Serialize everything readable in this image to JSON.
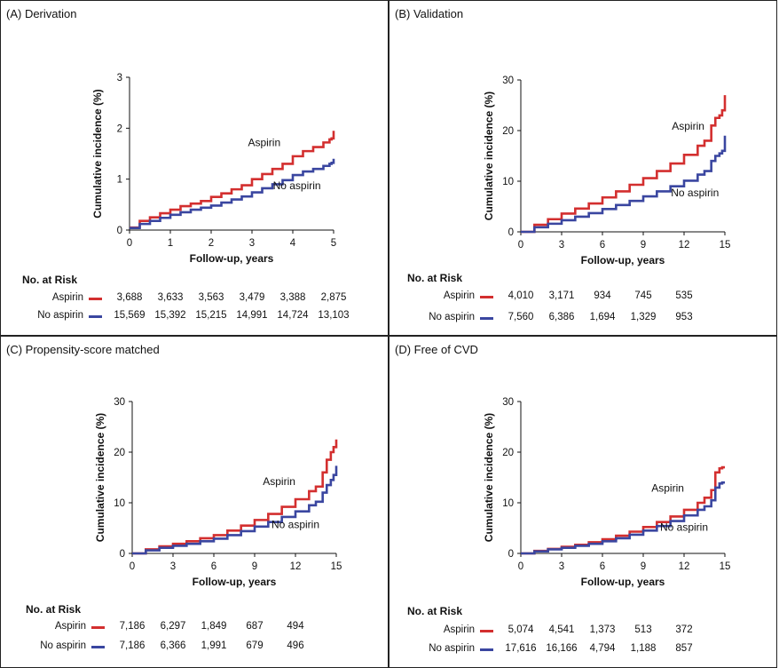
{
  "chart_data": [
    {
      "type": "line",
      "panel_title": "(A) Derivation",
      "xlabel": "Follow-up, years",
      "ylabel": "Cumulative incidence (%)",
      "xlim": [
        0,
        5
      ],
      "ylim": [
        0,
        3
      ],
      "xticks": [
        0,
        1,
        2,
        3,
        4,
        5
      ],
      "yticks": [
        0,
        1,
        2,
        3
      ],
      "series": [
        {
          "name": "Aspirin",
          "color": "#d32f2f",
          "x": [
            0,
            0.25,
            0.5,
            0.75,
            1,
            1.25,
            1.5,
            1.75,
            2,
            2.25,
            2.5,
            2.75,
            3,
            3.25,
            3.5,
            3.75,
            4,
            4.25,
            4.5,
            4.75,
            4.9,
            4.95,
            5
          ],
          "y": [
            0.05,
            0.18,
            0.25,
            0.33,
            0.4,
            0.47,
            0.52,
            0.57,
            0.65,
            0.72,
            0.8,
            0.88,
            1.0,
            1.1,
            1.2,
            1.3,
            1.45,
            1.55,
            1.63,
            1.72,
            1.78,
            1.8,
            1.95
          ]
        },
        {
          "name": "No aspirin",
          "color": "#3a46a0",
          "x": [
            0,
            0.25,
            0.5,
            0.75,
            1,
            1.25,
            1.5,
            1.75,
            2,
            2.25,
            2.5,
            2.75,
            3,
            3.25,
            3.5,
            3.75,
            4,
            4.25,
            4.5,
            4.75,
            4.9,
            4.95,
            5
          ],
          "y": [
            0.04,
            0.12,
            0.18,
            0.24,
            0.3,
            0.35,
            0.4,
            0.44,
            0.48,
            0.54,
            0.6,
            0.66,
            0.74,
            0.82,
            0.9,
            0.98,
            1.08,
            1.15,
            1.2,
            1.26,
            1.3,
            1.32,
            1.4
          ]
        }
      ],
      "curve_labels": [
        {
          "text": "Aspirin",
          "x": 3.3,
          "y": 1.65
        },
        {
          "text": "No aspirin",
          "x": 4.1,
          "y": 0.8
        }
      ],
      "risk_table": {
        "title": "No. at Risk",
        "rows": [
          {
            "label": "Aspirin",
            "color": "#d32f2f",
            "values": [
              "3,688",
              "3,633",
              "3,563",
              "3,479",
              "3,388",
              "2,875"
            ]
          },
          {
            "label": "No aspirin",
            "color": "#3a46a0",
            "values": [
              "15,569",
              "15,392",
              "15,215",
              "14,991",
              "14,724",
              "13,103"
            ]
          }
        ]
      }
    },
    {
      "type": "line",
      "panel_title": "(B) Validation",
      "xlabel": "Follow-up, years",
      "ylabel": "Cumulative incidence (%)",
      "xlim": [
        0,
        15
      ],
      "ylim": [
        0,
        30
      ],
      "xticks": [
        0,
        3,
        6,
        9,
        12,
        15
      ],
      "yticks": [
        0,
        10,
        20,
        30
      ],
      "series": [
        {
          "name": "Aspirin",
          "color": "#d32f2f",
          "x": [
            0,
            1,
            2,
            3,
            4,
            5,
            6,
            7,
            8,
            9,
            10,
            11,
            12,
            13,
            13.5,
            14,
            14.3,
            14.6,
            14.8,
            15
          ],
          "y": [
            0,
            1.4,
            2.5,
            3.6,
            4.6,
            5.6,
            6.8,
            8.0,
            9.3,
            10.6,
            12.0,
            13.5,
            15.2,
            17.0,
            18.0,
            21.0,
            22.5,
            23.0,
            24.0,
            27.0
          ]
        },
        {
          "name": "No aspirin",
          "color": "#3a46a0",
          "x": [
            0,
            1,
            2,
            3,
            4,
            5,
            6,
            7,
            8,
            9,
            10,
            11,
            12,
            13,
            13.5,
            14,
            14.3,
            14.6,
            14.8,
            15
          ],
          "y": [
            0,
            0.9,
            1.6,
            2.3,
            3.0,
            3.7,
            4.5,
            5.3,
            6.1,
            7.0,
            8.0,
            9.0,
            10.1,
            11.3,
            12.0,
            14.0,
            15.0,
            15.5,
            16.0,
            19.0
          ]
        }
      ],
      "curve_labels": [
        {
          "text": "Aspirin",
          "x": 12.3,
          "y": 20.2
        },
        {
          "text": "No aspirin",
          "x": 12.8,
          "y": 7.0
        }
      ],
      "risk_table": {
        "title": "No. at Risk",
        "rows": [
          {
            "label": "Aspirin",
            "color": "#d32f2f",
            "values": [
              "4,010",
              "3,171",
              "934",
              "745",
              "535"
            ]
          },
          {
            "label": "No aspirin",
            "color": "#3a46a0",
            "values": [
              "7,560",
              "6,386",
              "1,694",
              "1,329",
              "953"
            ]
          }
        ]
      }
    },
    {
      "type": "line",
      "panel_title": "(C) Propensity-score matched",
      "xlabel": "Follow-up, years",
      "ylabel": "Cumulative incidence (%)",
      "xlim": [
        0,
        15
      ],
      "ylim": [
        0,
        30
      ],
      "xticks": [
        0,
        3,
        6,
        9,
        12,
        15
      ],
      "yticks": [
        0,
        10,
        20,
        30
      ],
      "series": [
        {
          "name": "Aspirin",
          "color": "#d32f2f",
          "x": [
            0,
            1,
            2,
            3,
            4,
            5,
            6,
            7,
            8,
            9,
            10,
            11,
            12,
            13,
            13.5,
            14,
            14.3,
            14.6,
            14.8,
            15
          ],
          "y": [
            0,
            0.8,
            1.4,
            1.9,
            2.4,
            3.0,
            3.6,
            4.5,
            5.5,
            6.6,
            7.8,
            9.2,
            10.7,
            12.3,
            13.2,
            16.0,
            18.5,
            20.0,
            21.0,
            22.5
          ]
        },
        {
          "name": "No aspirin",
          "color": "#3a46a0",
          "x": [
            0,
            1,
            2,
            3,
            4,
            5,
            6,
            7,
            8,
            9,
            10,
            11,
            12,
            13,
            13.5,
            14,
            14.3,
            14.6,
            14.8,
            15
          ],
          "y": [
            0,
            0.6,
            1.1,
            1.5,
            1.9,
            2.4,
            2.9,
            3.6,
            4.4,
            5.3,
            6.2,
            7.2,
            8.3,
            9.5,
            10.2,
            12.0,
            13.5,
            14.5,
            15.5,
            17.3
          ]
        }
      ],
      "curve_labels": [
        {
          "text": "Aspirin",
          "x": 10.8,
          "y": 13.5
        },
        {
          "text": "No aspirin",
          "x": 12.0,
          "y": 5.0
        }
      ],
      "risk_table": {
        "title": "No. at Risk",
        "rows": [
          {
            "label": "Aspirin",
            "color": "#d32f2f",
            "values": [
              "7,186",
              "6,297",
              "1,849",
              "687",
              "494"
            ]
          },
          {
            "label": "No aspirin",
            "color": "#3a46a0",
            "values": [
              "7,186",
              "6,366",
              "1,991",
              "679",
              "496"
            ]
          }
        ]
      }
    },
    {
      "type": "line",
      "panel_title": "(D) Free of CVD",
      "xlabel": "Follow-up, years",
      "ylabel": "Cumulative incidence (%)",
      "xlim": [
        0,
        15
      ],
      "ylim": [
        0,
        30
      ],
      "xticks": [
        0,
        3,
        6,
        9,
        12,
        15
      ],
      "yticks": [
        0,
        10,
        20,
        30
      ],
      "series": [
        {
          "name": "Aspirin",
          "color": "#d32f2f",
          "x": [
            0,
            1,
            2,
            3,
            4,
            5,
            6,
            7,
            8,
            9,
            10,
            11,
            12,
            13,
            13.5,
            14,
            14.3,
            14.6,
            14.8,
            15
          ],
          "y": [
            0,
            0.5,
            0.9,
            1.3,
            1.7,
            2.2,
            2.8,
            3.5,
            4.3,
            5.2,
            6.2,
            7.3,
            8.6,
            10.0,
            11.0,
            12.5,
            16.0,
            16.8,
            17.0,
            17.0
          ]
        },
        {
          "name": "No aspirin",
          "color": "#3a46a0",
          "x": [
            0,
            1,
            2,
            3,
            4,
            5,
            6,
            7,
            8,
            9,
            10,
            11,
            12,
            13,
            13.5,
            14,
            14.3,
            14.6,
            14.8,
            15
          ],
          "y": [
            0,
            0.4,
            0.8,
            1.1,
            1.5,
            1.9,
            2.4,
            3.0,
            3.7,
            4.5,
            5.4,
            6.4,
            7.5,
            8.6,
            9.3,
            10.5,
            13.0,
            13.8,
            14.0,
            14.0
          ]
        }
      ],
      "curve_labels": [
        {
          "text": "Aspirin",
          "x": 10.8,
          "y": 12.2
        },
        {
          "text": "No aspirin",
          "x": 12.0,
          "y": 4.5
        }
      ],
      "risk_table": {
        "title": "No. at Risk",
        "rows": [
          {
            "label": "Aspirin",
            "color": "#d32f2f",
            "values": [
              "5,074",
              "4,541",
              "1,373",
              "513",
              "372"
            ]
          },
          {
            "label": "No aspirin",
            "color": "#3a46a0",
            "values": [
              "17,616",
              "16,166",
              "4,794",
              "1,188",
              "857"
            ]
          }
        ]
      }
    }
  ]
}
